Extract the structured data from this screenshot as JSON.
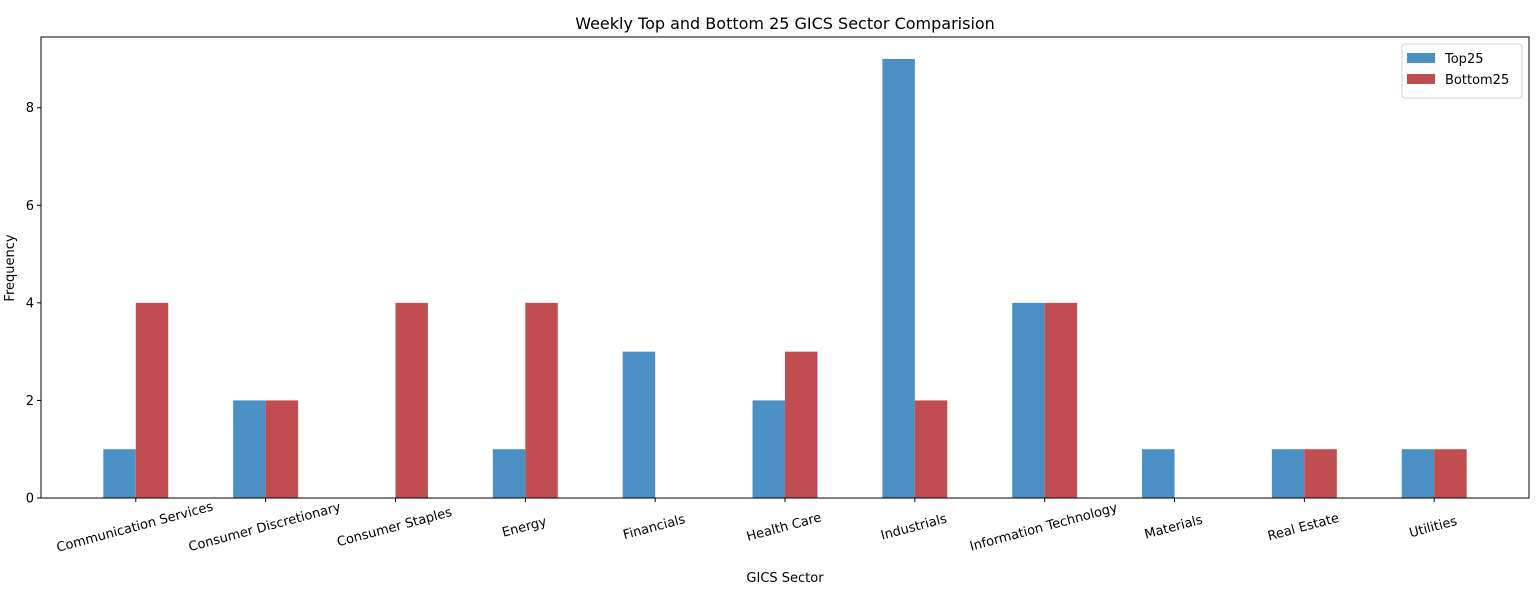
{
  "chart_data": {
    "type": "bar",
    "title": "Weekly Top and Bottom 25 GICS Sector Comparision",
    "xlabel": "GICS Sector",
    "ylabel": "Frequency",
    "categories": [
      "Communication Services",
      "Consumer Discretionary",
      "Consumer Staples",
      "Energy",
      "Financials",
      "Health Care",
      "Industrials",
      "Information Technology",
      "Materials",
      "Real Estate",
      "Utilities"
    ],
    "series": [
      {
        "name": "Top25",
        "color": "#4a90c4",
        "values": [
          1,
          2,
          0,
          1,
          3,
          2,
          9,
          4,
          1,
          1,
          1
        ]
      },
      {
        "name": "Bottom25",
        "color": "#c04d4f",
        "values": [
          4,
          2,
          4,
          4,
          0,
          3,
          2,
          4,
          0,
          1,
          1
        ]
      }
    ],
    "ylim": [
      0,
      9.45
    ],
    "yticks": [
      0,
      2,
      4,
      6,
      8
    ],
    "legend": "top-right",
    "grid": false
  }
}
